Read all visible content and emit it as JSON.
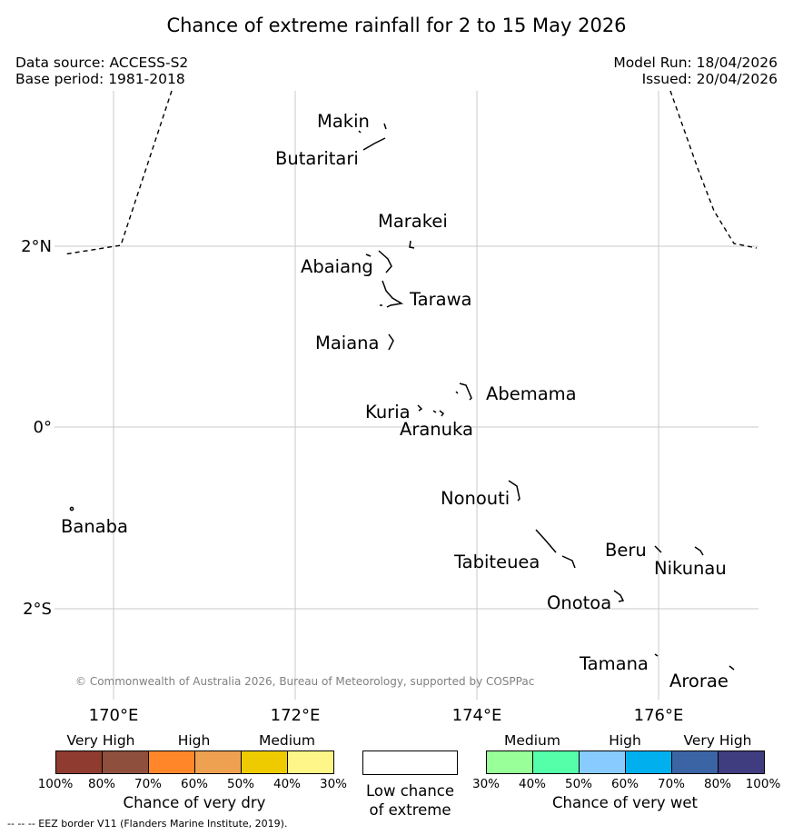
{
  "title": "Chance of extreme rainfall for 2 to 15 May 2026",
  "meta": {
    "data_source": "Data source: ACCESS-S2",
    "base_period": "Base period: 1981-2018",
    "model_run": "Model Run: 18/04/2026",
    "issued": "Issued: 20/04/2026"
  },
  "map": {
    "lat_labels": [
      "2°N",
      "0°",
      "2°S"
    ],
    "lon_labels": [
      "170°E",
      "172°E",
      "174°E",
      "176°E"
    ],
    "islands": [
      "Makin",
      "Butaritari",
      "Marakei",
      "Abaiang",
      "Tarawa",
      "Maiana",
      "Abemama",
      "Kuria",
      "Aranuka",
      "Banaba",
      "Nonouti",
      "Tabiteuea",
      "Beru",
      "Nikunau",
      "Onotoa",
      "Tamana",
      "Arorae"
    ],
    "copyright": "© Commonwealth of Australia 2026, Bureau of Meteorology, supported by COSPPac"
  },
  "legend": {
    "dry": {
      "categories": [
        "Very High",
        "High",
        "Medium"
      ],
      "colors": [
        "#8f3b30",
        "#8e4f3c",
        "#ff8729",
        "#eea150",
        "#eecb00",
        "#fff68a"
      ],
      "ticks": [
        "100%",
        "80%",
        "70%",
        "60%",
        "50%",
        "40%",
        "30%"
      ],
      "title": "Chance of very dry"
    },
    "low": {
      "label_line1": "Low chance",
      "label_line2": "of extreme"
    },
    "wet": {
      "categories": [
        "Medium",
        "High",
        "Very High"
      ],
      "colors": [
        "#99ff99",
        "#55ffaa",
        "#88ccff",
        "#00b0ee",
        "#3a64a4",
        "#3f3d7f"
      ],
      "ticks": [
        "30%",
        "40%",
        "50%",
        "60%",
        "70%",
        "80%",
        "100%"
      ],
      "title": "Chance of very wet"
    },
    "footnote": "--  --  -- EEZ border V11 (Flanders Marine Institute, 2019)."
  }
}
